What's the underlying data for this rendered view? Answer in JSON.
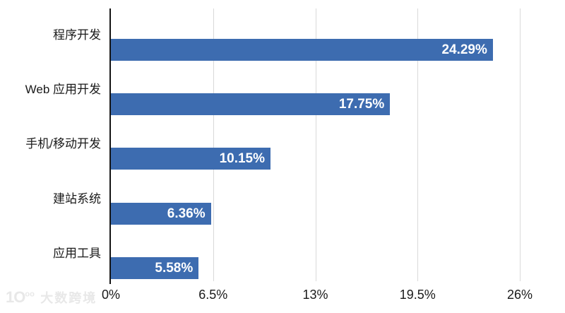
{
  "watermark": {
    "logo_main": "1O",
    "logo_sup": "oo",
    "text": "大数跨境"
  },
  "chart_data": {
    "type": "bar",
    "orientation": "horizontal",
    "title": "",
    "categories": [
      "程序开发",
      "Web 应用开发",
      "手机/移动开发",
      "建站系统",
      "应用工具"
    ],
    "values": [
      24.29,
      17.75,
      10.15,
      6.36,
      5.58
    ],
    "value_labels": [
      "24.29%",
      "17.75%",
      "10.15%",
      "6.36%",
      "5.58%"
    ],
    "x_tick_labels": [
      "0%",
      "6.5%",
      "13%",
      "19.5%",
      "26%"
    ],
    "x_tick_values": [
      0,
      6.5,
      13,
      19.5,
      26
    ],
    "xlim": [
      0,
      26
    ],
    "grid": true,
    "legend": false,
    "colors": {
      "bar": "#3d6cb0",
      "gridline": "#d9d9d9",
      "axis": "#141414",
      "value_text": "#ffffff",
      "label_text": "#1a1a1a"
    }
  }
}
